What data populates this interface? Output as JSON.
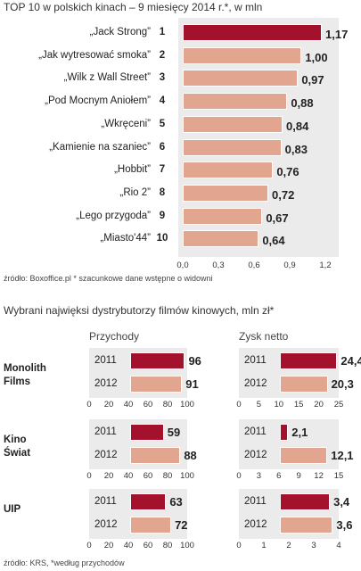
{
  "colors": {
    "highlight": "#a4112c",
    "bar": "#e2a590",
    "panel": "#ebebeb"
  },
  "top_title": "TOP 10  w polskich kinach – 9 miesięcy 2014 r.*, w mln",
  "source_top": "źródło: Boxoffice.pl * szacunkowe dane wstępne o widowni",
  "distributors_title": "Wybrani najwięksi dystrybutorzy filmów kinowych, mln zł*",
  "source_distributors": "źródło: KRS, *według przychodów",
  "chart_data": [
    {
      "type": "bar",
      "orientation": "horizontal",
      "title": "TOP 10  w polskich kinach – 9 miesięcy 2014 r.*, w mln",
      "categories": [
        "„Jack Strong”",
        "„Jak wytresować smoka”",
        "„Wilk z Wall Street”",
        "„Pod Mocnym Aniołem”",
        "„Wkręceni”",
        "„Kamienie na szaniec”",
        "„Hobbit”",
        "„Rio 2”",
        "„Lego przygoda”",
        "„Miasto'44”"
      ],
      "ranks": [
        "1",
        "2",
        "3",
        "4",
        "5",
        "6",
        "7",
        "8",
        "9",
        "10"
      ],
      "values": [
        1.17,
        1.0,
        0.97,
        0.88,
        0.84,
        0.83,
        0.76,
        0.72,
        0.67,
        0.64
      ],
      "value_labels": [
        "1,17",
        "1,00",
        "0,97",
        "0,88",
        "0,84",
        "0,83",
        "0,76",
        "0,72",
        "0,67",
        "0,64"
      ],
      "highlight_index": 0,
      "xlim": [
        0,
        1.2
      ],
      "xticks": [
        "0,0",
        "0,3",
        "0,6",
        "0,9",
        "1,2"
      ],
      "grid": false
    },
    {
      "type": "bar",
      "orientation": "horizontal",
      "title": "Wybrani najwięksi dystrybutorzy filmów kinowych, mln zł*",
      "panel_titles": [
        "Przychody",
        "Zysk netto"
      ],
      "groups": [
        {
          "name": "Monolith Films",
          "name_lines": [
            "Monolith",
            "Films"
          ],
          "years": [
            "2011",
            "2012"
          ],
          "revenue": [
            96,
            91
          ],
          "revenue_labels": [
            "96",
            "91"
          ],
          "revenue_xlim": [
            0,
            100
          ],
          "revenue_ticks": [
            "0",
            "20",
            "40",
            "60",
            "80",
            "100"
          ],
          "profit": [
            24.4,
            20.3
          ],
          "profit_labels": [
            "24,4",
            "20,3"
          ],
          "profit_xlim": [
            0,
            25
          ],
          "profit_ticks": [
            "0",
            "5",
            "10",
            "15",
            "20",
            "25"
          ]
        },
        {
          "name": "Kino Świat",
          "name_lines": [
            "Kino",
            "Świat"
          ],
          "years": [
            "2011",
            "2012"
          ],
          "revenue": [
            59,
            88
          ],
          "revenue_labels": [
            "59",
            "88"
          ],
          "revenue_xlim": [
            0,
            100
          ],
          "revenue_ticks": [
            "0",
            "20",
            "40",
            "60",
            "80",
            "100"
          ],
          "profit": [
            2.1,
            12.1
          ],
          "profit_labels": [
            "2,1",
            "12,1"
          ],
          "profit_xlim": [
            0,
            15
          ],
          "profit_ticks": [
            "0",
            "3",
            "6",
            "9",
            "12",
            "15"
          ]
        },
        {
          "name": "UIP",
          "name_lines": [
            "UIP"
          ],
          "years": [
            "2011",
            "2012"
          ],
          "revenue": [
            63,
            72
          ],
          "revenue_labels": [
            "63",
            "72"
          ],
          "revenue_xlim": [
            0,
            100
          ],
          "revenue_ticks": [
            "0",
            "20",
            "40",
            "60",
            "80",
            "100"
          ],
          "profit": [
            3.4,
            3.6
          ],
          "profit_labels": [
            "3,4",
            "3,6"
          ],
          "profit_xlim": [
            0,
            4
          ],
          "profit_ticks": [
            "0",
            "1",
            "2",
            "3",
            "4"
          ]
        }
      ]
    }
  ]
}
